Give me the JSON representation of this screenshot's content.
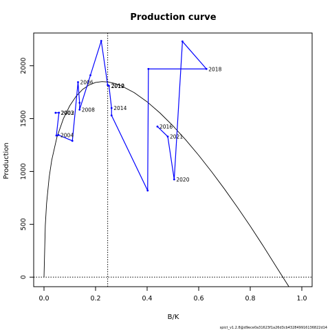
{
  "chart_data": {
    "type": "line",
    "title": "Production curve",
    "xlabel": "B/K",
    "ylabel": "Production",
    "xlim": [
      -0.04,
      1.04
    ],
    "ylim": [
      -90,
      2310
    ],
    "x_ticks": [
      0.0,
      0.2,
      0.4,
      0.6,
      0.8,
      1.0
    ],
    "x_tick_labels": [
      "0.0",
      "0.2",
      "0.4",
      "0.6",
      "0.8",
      "1.0"
    ],
    "y_ticks": [
      0,
      500,
      1000,
      1500,
      2000
    ],
    "y_tick_labels": [
      "0",
      "500",
      "1000",
      "1500",
      "2000"
    ],
    "grid": false,
    "bmsy_line_x": 0.247,
    "zero_line_y": 0,
    "production_curve": {
      "color": "#000000",
      "x": [
        0.0,
        0.005,
        0.01,
        0.02,
        0.03,
        0.05,
        0.075,
        0.1,
        0.125,
        0.15,
        0.175,
        0.2,
        0.225,
        0.25,
        0.275,
        0.3,
        0.35,
        0.4,
        0.45,
        0.5,
        0.55,
        0.6,
        0.65,
        0.7,
        0.75,
        0.8,
        0.85,
        0.9,
        0.95,
        1.0
      ],
      "y": [
        0,
        488,
        697,
        945,
        1107,
        1323,
        1498,
        1622,
        1713,
        1777,
        1818,
        1842,
        1850,
        1846,
        1832,
        1810,
        1746,
        1659,
        1553,
        1432,
        1298,
        1153,
        998,
        834,
        662,
        483,
        296,
        102,
        -97,
        -100
      ]
    },
    "series": [
      {
        "name": "",
        "color": "#0000ff",
        "points": [
          {
            "x": 0.045,
            "y": 1555,
            "label": ""
          },
          {
            "x": 0.058,
            "y": 1556,
            "label": "2002"
          },
          {
            "x": 0.048,
            "y": 1340,
            "label": ""
          },
          {
            "x": 0.056,
            "y": 1345,
            "label": "2004"
          },
          {
            "x": 0.11,
            "y": 1290,
            "label": ""
          },
          {
            "x": 0.132,
            "y": 1845,
            "label": "2006"
          },
          {
            "x": 0.138,
            "y": 1650,
            "label": ""
          },
          {
            "x": 0.138,
            "y": 1585,
            "label": "2008"
          },
          {
            "x": 0.18,
            "y": 1910,
            "label": ""
          },
          {
            "x": 0.222,
            "y": 2235,
            "label": ""
          },
          {
            "x": 0.247,
            "y": 1818,
            "label": ""
          },
          {
            "x": 0.252,
            "y": 1810,
            "label": "2012"
          },
          {
            "x": 0.262,
            "y": 1600,
            "label": "2014"
          },
          {
            "x": 0.262,
            "y": 1530,
            "label": ""
          },
          {
            "x": 0.402,
            "y": 820,
            "label": ""
          },
          {
            "x": 0.405,
            "y": 1970,
            "label": ""
          },
          {
            "x": 0.63,
            "y": 1970,
            "label": "2018"
          },
          {
            "x": 0.537,
            "y": 2230,
            "label": ""
          },
          {
            "x": 0.505,
            "y": 925,
            "label": "2020"
          },
          {
            "x": 0.48,
            "y": 1330,
            "label": "2021"
          },
          {
            "x": 0.44,
            "y": 1425,
            "label": "2016"
          }
        ],
        "extra_labels": [
          {
            "x": 0.253,
            "y": 1812,
            "label": "2010"
          },
          {
            "x": 0.057,
            "y": 1557,
            "label": "2003"
          }
        ]
      }
    ]
  },
  "footer_text": "spict_v1.2.8@d9ece0a31623f1a26d3cb432849916136822d14"
}
